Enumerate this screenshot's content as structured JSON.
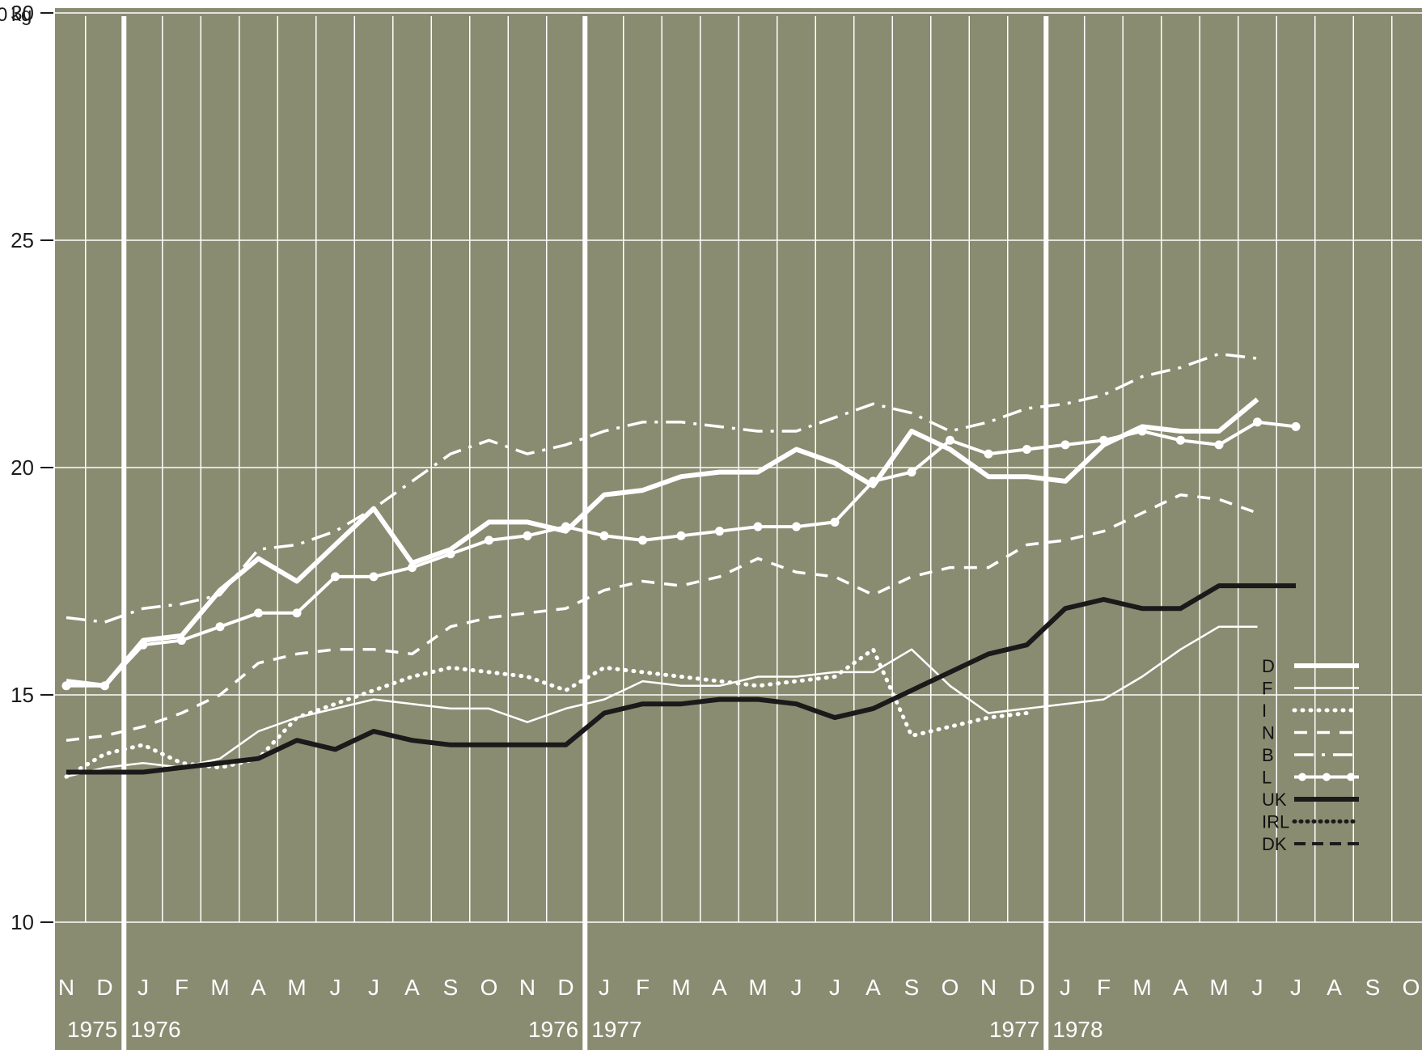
{
  "chart_data": {
    "type": "line",
    "unit_label": "kg",
    "ylim": [
      8.5,
      31
    ],
    "y_ticks": [
      10,
      15,
      20,
      25,
      30
    ],
    "x_ticks": [
      "N",
      "D",
      "J",
      "F",
      "M",
      "A",
      "M",
      "J",
      "J",
      "A",
      "S",
      "O",
      "N",
      "D",
      "J",
      "F",
      "M",
      "A",
      "M",
      "J",
      "J",
      "A",
      "S",
      "O",
      "N",
      "D",
      "J",
      "F",
      "M",
      "A",
      "M",
      "J",
      "J",
      "A",
      "S",
      "O"
    ],
    "year_labels": [
      {
        "text": "1975",
        "index": 1
      },
      {
        "text": "1976",
        "index": 2
      },
      {
        "text": "1976",
        "index": 13
      },
      {
        "text": "1977",
        "index": 14
      },
      {
        "text": "1977",
        "index": 25
      },
      {
        "text": "1978",
        "index": 26
      }
    ],
    "year_separators_after_index": [
      1,
      13,
      25
    ],
    "grid": true,
    "legend_position": "right",
    "colors": {
      "background": "#8a8c72",
      "grid": "#ffffff",
      "light_series": "#ffffff",
      "dark_series": "#1a1a1a"
    },
    "series": [
      {
        "name": "D",
        "style": "thick",
        "values": [
          15.3,
          15.2,
          16.2,
          16.3,
          17.3,
          18.0,
          17.5,
          18.3,
          19.1,
          17.9,
          18.2,
          18.8,
          18.8,
          18.6,
          19.4,
          19.5,
          19.8,
          19.9,
          19.9,
          20.4,
          20.1,
          19.6,
          20.8,
          20.4,
          19.8,
          19.8,
          19.7,
          20.5,
          20.9,
          20.8,
          20.8,
          21.5
        ]
      },
      {
        "name": "F",
        "style": "thin",
        "values": [
          13.2,
          13.4,
          13.5,
          13.4,
          13.6,
          14.2,
          14.5,
          14.7,
          14.9,
          14.8,
          14.7,
          14.7,
          14.4,
          14.7,
          14.9,
          15.3,
          15.2,
          15.2,
          15.4,
          15.4,
          15.5,
          15.5,
          16.0,
          15.2,
          14.6,
          14.7,
          14.8,
          14.9,
          15.4,
          16.0,
          16.5,
          16.5
        ]
      },
      {
        "name": "I",
        "style": "dotted",
        "values": [
          13.2,
          13.7,
          13.9,
          13.5,
          13.4,
          13.6,
          14.5,
          14.8,
          15.1,
          15.4,
          15.6,
          15.5,
          15.4,
          15.1,
          15.6,
          15.5,
          15.4,
          15.3,
          15.2,
          15.3,
          15.4,
          16.0,
          14.1,
          14.3,
          14.5,
          14.6
        ]
      },
      {
        "name": "N",
        "style": "dashed",
        "values": [
          14.0,
          14.1,
          14.3,
          14.6,
          15.0,
          15.7,
          15.9,
          16.0,
          16.0,
          15.9,
          16.5,
          16.7,
          16.8,
          16.9,
          17.3,
          17.5,
          17.4,
          17.6,
          18.0,
          17.7,
          17.6,
          17.2,
          17.6,
          17.8,
          17.8,
          18.3,
          18.4,
          18.6,
          19.0,
          19.4,
          19.3,
          19.0
        ]
      },
      {
        "name": "B",
        "style": "dashdot",
        "values": [
          16.7,
          16.6,
          16.9,
          17.0,
          17.2,
          18.2,
          18.3,
          18.6,
          19.1,
          19.7,
          20.3,
          20.6,
          20.3,
          20.5,
          20.8,
          21.0,
          21.0,
          20.9,
          20.8,
          20.8,
          21.1,
          21.4,
          21.2,
          20.8,
          21.0,
          21.3,
          21.4,
          21.6,
          22.0,
          22.2,
          22.5,
          22.4
        ]
      },
      {
        "name": "L",
        "style": "dotted-line",
        "values": [
          15.2,
          15.2,
          16.1,
          16.2,
          16.5,
          16.8,
          16.8,
          17.6,
          17.6,
          17.8,
          18.1,
          18.4,
          18.5,
          18.7,
          18.5,
          18.4,
          18.5,
          18.6,
          18.7,
          18.7,
          18.8,
          19.7,
          19.9,
          20.6,
          20.3,
          20.4,
          20.5,
          20.6,
          20.8,
          20.6,
          20.5,
          21.0,
          20.9
        ]
      },
      {
        "name": "UK",
        "style": "thick-dark",
        "values": [
          13.3,
          13.3,
          13.3,
          13.4,
          13.5,
          13.6,
          14.0,
          13.8,
          14.2,
          14.0,
          13.9,
          13.9,
          13.9,
          13.9,
          14.6,
          14.8,
          14.8,
          14.9,
          14.9,
          14.8,
          14.5,
          14.7,
          15.1,
          15.5,
          15.9,
          16.1,
          16.9,
          17.1,
          16.9,
          16.9,
          17.4,
          17.4,
          17.4
        ]
      },
      {
        "name": "IRL",
        "style": "dotted-bold",
        "values": []
      },
      {
        "name": "DK",
        "style": "dashed-bold",
        "values": []
      }
    ]
  }
}
